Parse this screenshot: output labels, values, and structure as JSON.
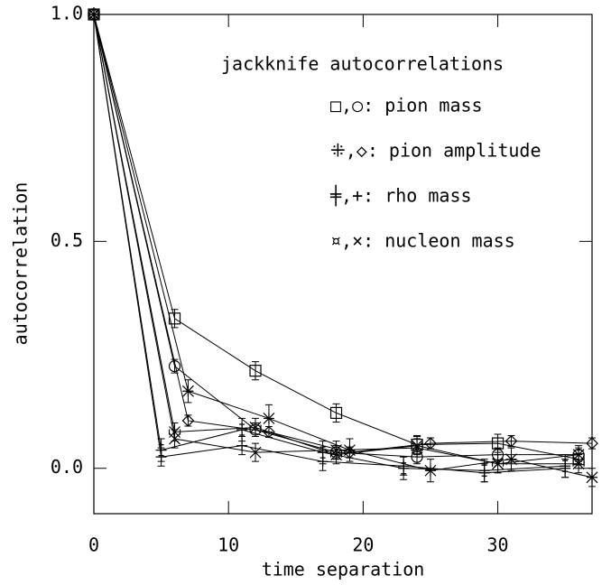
{
  "chart_data": {
    "type": "errorline",
    "xlabel": "time separation",
    "ylabel": "autocorrelation",
    "xlim": [
      0,
      37
    ],
    "ylim": [
      -0.1,
      1.0
    ],
    "xticks": [
      0,
      10,
      20,
      30
    ],
    "yticks": [
      {
        "value": 0,
        "label": "0.0"
      },
      {
        "value": 0.5,
        "label": "0.5"
      },
      {
        "value": 1.0,
        "label": "1.0"
      }
    ],
    "legend": {
      "title": "jackknife autocorrelations",
      "entries": [
        "□,○: pion mass",
        "⁜,◇: pion amplitude",
        "╪,+: rho mass",
        "¤,×: nucleon mass"
      ]
    },
    "series": [
      {
        "marker": "square",
        "color": "#000000",
        "x": [
          0,
          6,
          12,
          18,
          24,
          30,
          36
        ],
        "values": [
          1,
          0.33,
          0.215,
          0.122,
          0.052,
          0.055,
          0.02
        ],
        "errors": [
          0,
          0.02,
          0.02,
          0.02,
          0.02,
          0.02,
          0.02
        ]
      },
      {
        "marker": "circle",
        "color": "#000000",
        "x": [
          0,
          6,
          12,
          18,
          24,
          30,
          36
        ],
        "values": [
          1,
          0.225,
          0.085,
          0.035,
          0.025,
          0.03,
          0.03
        ],
        "errors": [
          0,
          0.015,
          0.015,
          0.015,
          0.015,
          0.015,
          0.015
        ]
      },
      {
        "marker": "burst",
        "color": "#000000",
        "x": [
          0,
          7,
          13,
          19,
          25,
          31,
          37
        ],
        "values": [
          1,
          0.17,
          0.11,
          0.04,
          -0.005,
          0.02,
          -0.02
        ],
        "errors": [
          0,
          0.025,
          0.03,
          0.025,
          0.025,
          0.025,
          0.02
        ]
      },
      {
        "marker": "diamond",
        "color": "#000000",
        "x": [
          0,
          7,
          13,
          19,
          25,
          31,
          37
        ],
        "values": [
          1,
          0.105,
          0.08,
          0.035,
          0.055,
          0.06,
          0.055
        ],
        "errors": [
          0,
          0.012,
          0.012,
          0.012,
          0.012,
          0.012,
          0.012
        ]
      },
      {
        "marker": "hashplus",
        "color": "#000000",
        "x": [
          0,
          5,
          11,
          17,
          23,
          29,
          35
        ],
        "values": [
          1,
          0.04,
          0.085,
          0.035,
          0,
          -0.005,
          0.005
        ],
        "errors": [
          0,
          0.025,
          0.025,
          0.025,
          0.025,
          0.025,
          0.025
        ]
      },
      {
        "marker": "plus",
        "color": "#000000",
        "x": [
          0,
          5,
          11,
          17,
          23,
          29,
          35
        ],
        "values": [
          1,
          0.025,
          0.05,
          0.015,
          0.005,
          -0.01,
          0
        ],
        "errors": [
          0,
          0.02,
          0.02,
          0.02,
          0.02,
          0.02,
          0.02
        ]
      },
      {
        "marker": "boxcross",
        "color": "#000000",
        "x": [
          0,
          6,
          12,
          18,
          24,
          30,
          36
        ],
        "values": [
          1,
          0.08,
          0.09,
          0.03,
          0.05,
          0.01,
          0.01
        ],
        "errors": [
          0,
          0.02,
          0.02,
          0.02,
          0.02,
          0.02,
          0.02
        ]
      },
      {
        "marker": "cross",
        "color": "#000000",
        "x": [
          0,
          6,
          12,
          18,
          24,
          30,
          36
        ],
        "values": [
          1,
          0.065,
          0.035,
          0.04,
          0.045,
          0.01,
          0.03
        ],
        "errors": [
          0,
          0.02,
          0.02,
          0.02,
          0.02,
          0.02,
          0.02
        ]
      }
    ]
  }
}
